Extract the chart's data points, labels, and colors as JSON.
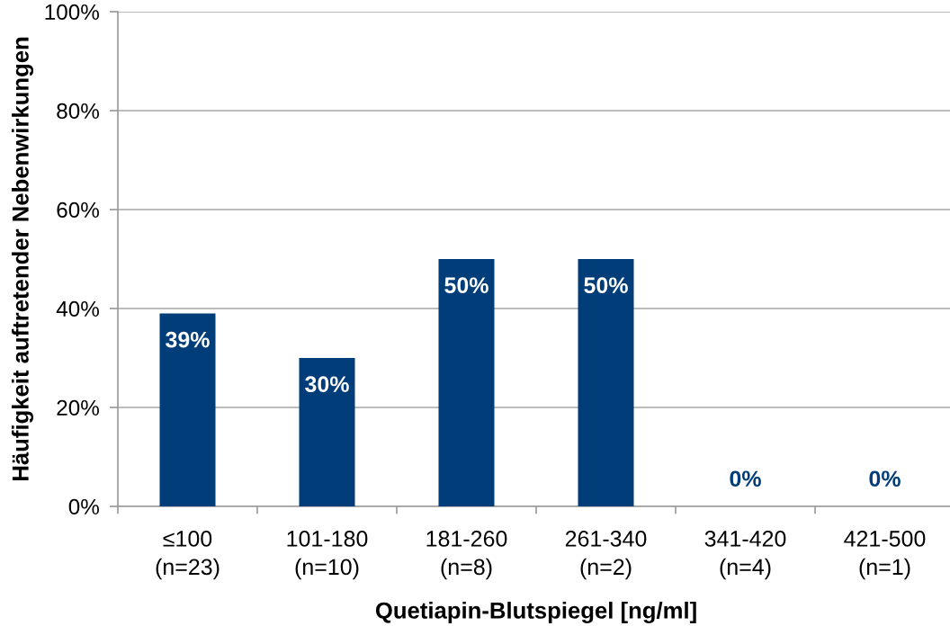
{
  "chart_data": {
    "type": "bar",
    "xlabel": "Quetiapin-Blutspiegel [ng/ml]",
    "ylabel": "Häufigkeit auftretender Nebenwirkungen",
    "categories": [
      "≤100\n(n=23)",
      "101-180\n(n=10)",
      "181-260\n(n=8)",
      "261-340\n(n=2)",
      "341-420\n(n=4)",
      "421-500\n(n=1)"
    ],
    "values": [
      39,
      30,
      50,
      50,
      0,
      0
    ],
    "value_labels": [
      "39%",
      "30%",
      "50%",
      "50%",
      "0%",
      "0%"
    ],
    "color": "#003d79",
    "ylim": [
      0,
      100
    ],
    "yticks": [
      {
        "value": 0,
        "label": "0%"
      },
      {
        "value": 20,
        "label": "20%"
      },
      {
        "value": 40,
        "label": "40%"
      },
      {
        "value": 60,
        "label": "60%"
      },
      {
        "value": 80,
        "label": "80%"
      },
      {
        "value": 100,
        "label": "100%"
      }
    ],
    "grid": "y",
    "legend": false
  }
}
